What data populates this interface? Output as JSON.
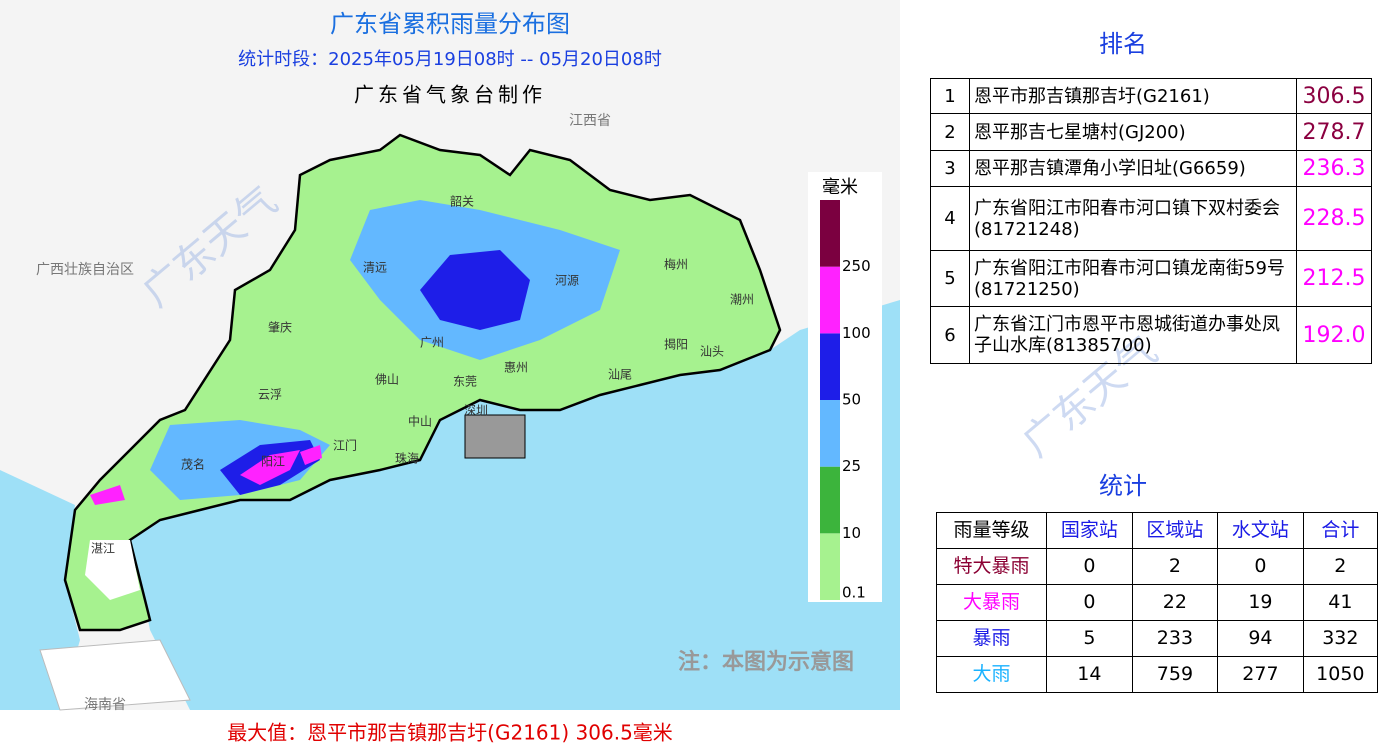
{
  "header": {
    "title": "广东省累积雨量分布图",
    "period": "统计时段：2025年05月19日08时  --  05月20日08时",
    "maker": "广东省气象台制作"
  },
  "map": {
    "neighbors": [
      "广西壮族自治区",
      "江西省",
      "海南省"
    ],
    "cities": [
      "韶关",
      "清远",
      "河源",
      "梅州",
      "潮州",
      "肇庆",
      "广州",
      "揭阳",
      "汕头",
      "云浮",
      "佛山",
      "东莞",
      "惠州",
      "汕尾",
      "深圳",
      "中山",
      "江门",
      "阳江",
      "珠海",
      "茂名",
      "湛江"
    ],
    "note": "注：本图为示意图",
    "watermark": "广东天气"
  },
  "legend": {
    "unit": "毫米",
    "levels": [
      {
        "label": "0.1",
        "color": "#a6f28f"
      },
      {
        "label": "10",
        "color": "#3cb43c"
      },
      {
        "label": "25",
        "color": "#63b8ff"
      },
      {
        "label": "50",
        "color": "#1e1ee8"
      },
      {
        "label": "100",
        "color": "#ff22ff"
      },
      {
        "label": "250",
        "color": "#7b0040"
      }
    ]
  },
  "ranking": {
    "title": "排名",
    "rows": [
      {
        "rank": "1",
        "station": "恩平市那吉镇那吉圩(G2161)",
        "value": "306.5",
        "color": "#8b0040"
      },
      {
        "rank": "2",
        "station": "恩平那吉七星塘村(GJ200)",
        "value": "278.7",
        "color": "#8b0040"
      },
      {
        "rank": "3",
        "station": "恩平那吉镇潭角小学旧址(G6659)",
        "value": "236.3",
        "color": "#ff00ff"
      },
      {
        "rank": "4",
        "station": "广东省阳江市阳春市河口镇下双村委会(81721248)",
        "value": "228.5",
        "color": "#ff00ff"
      },
      {
        "rank": "5",
        "station": "广东省阳江市阳春市河口镇龙南街59号(81721250)",
        "value": "212.5",
        "color": "#ff00ff"
      },
      {
        "rank": "6",
        "station": "广东省江门市恩平市恩城街道办事处凤子山水库(81385700)",
        "value": "192.0",
        "color": "#ff00ff"
      }
    ]
  },
  "stats": {
    "title": "统计",
    "header": [
      "雨量等级",
      "国家站",
      "区域站",
      "水文站",
      "合计"
    ],
    "rows": [
      {
        "level": "特大暴雨",
        "color": "#8b0033",
        "cells": [
          "0",
          "2",
          "0",
          "2"
        ]
      },
      {
        "level": "大暴雨",
        "color": "#ff00ff",
        "cells": [
          "0",
          "22",
          "19",
          "41"
        ]
      },
      {
        "level": "暴雨",
        "color": "#1a1ae6",
        "cells": [
          "5",
          "233",
          "94",
          "332"
        ]
      },
      {
        "level": "大雨",
        "color": "#1ab2ff",
        "cells": [
          "14",
          "759",
          "277",
          "1050"
        ]
      }
    ]
  },
  "footer": "最大值：恩平市那吉镇那吉圩(G2161) 306.5毫米"
}
